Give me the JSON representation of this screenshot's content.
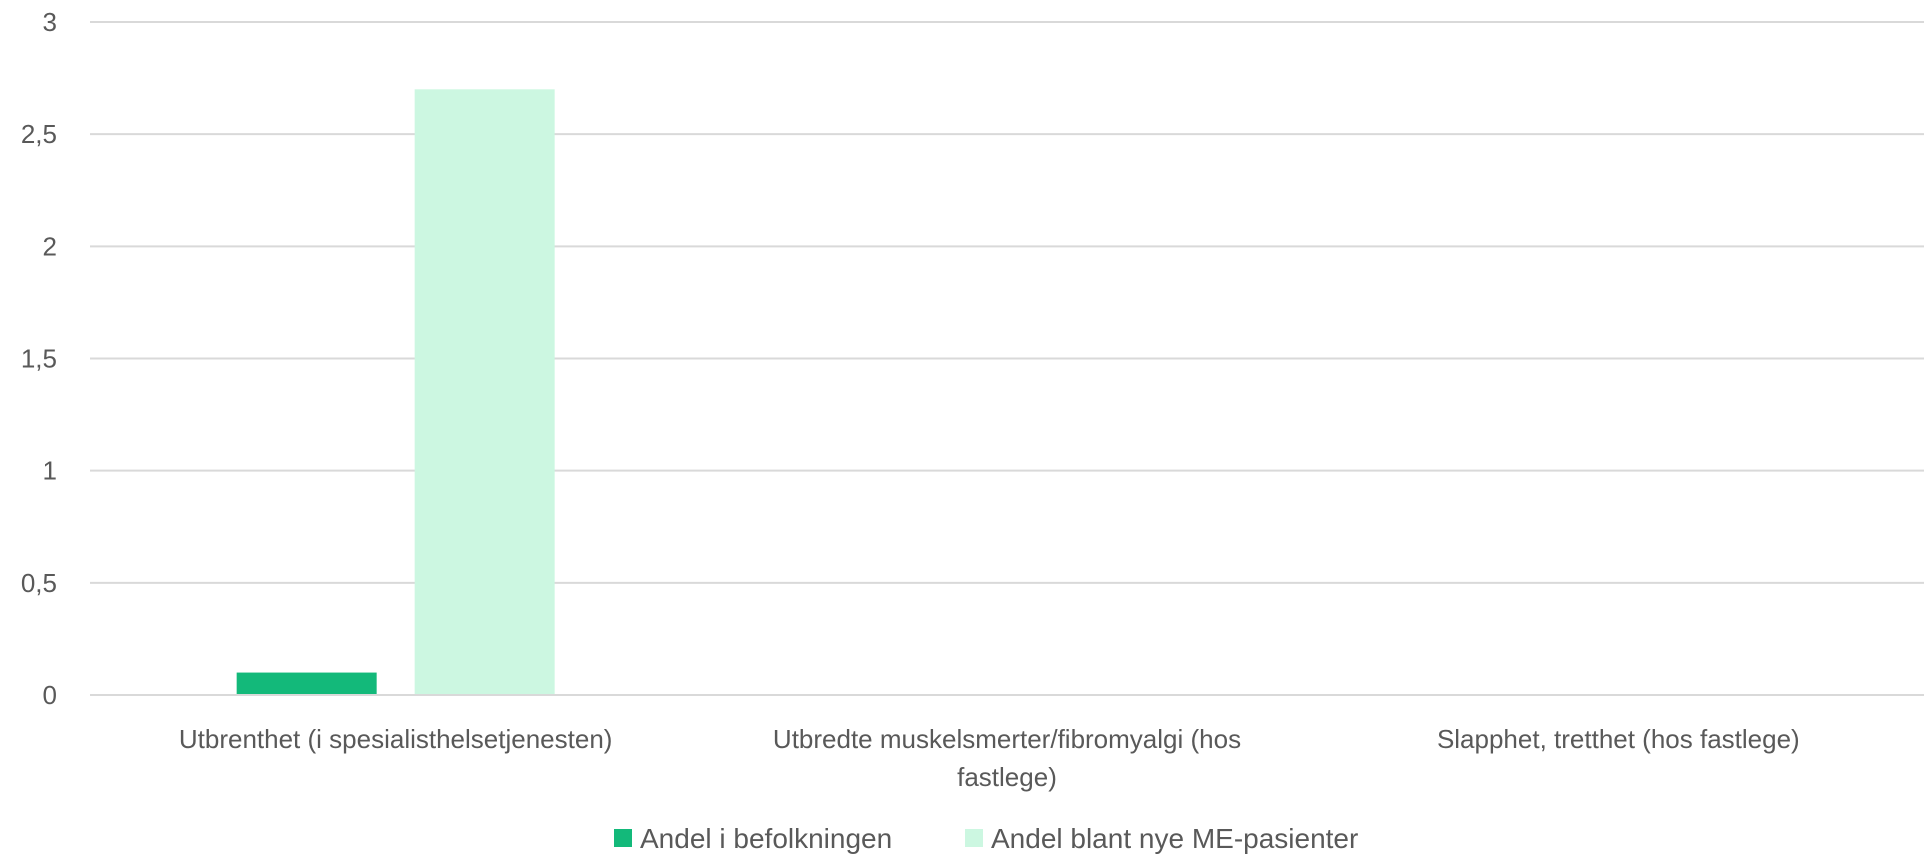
{
  "chart_data": {
    "type": "bar",
    "title": "",
    "xlabel": "",
    "ylabel": "",
    "ylim": [
      0,
      3
    ],
    "yticks": [
      0,
      0.5,
      1,
      1.5,
      2,
      2.5,
      3
    ],
    "ytick_labels": [
      "0",
      "0,5",
      "1",
      "1,5",
      "2",
      "2,5",
      "3"
    ],
    "grid": true,
    "legend_position": "bottom",
    "categories": [
      [
        "Utbrenthet (i spesialisthelsetjenesten)"
      ],
      [
        "Utbredte muskelsmerter/fibromyalgi (hos",
        "fastlege)"
      ],
      [
        "Slapphet, tretthet (hos fastlege)"
      ]
    ],
    "series": [
      {
        "name": "Andel i befolkningen",
        "color": "#13b97a",
        "values": [
          0.1,
          0,
          0
        ]
      },
      {
        "name": "Andel blant nye ME-pasienter",
        "color": "#ccf7e1",
        "values": [
          2.7,
          0,
          0
        ]
      }
    ]
  }
}
